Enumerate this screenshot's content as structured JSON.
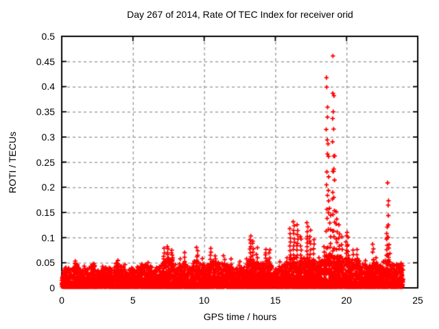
{
  "window": {
    "background": "#ffffff",
    "text_color": "#000000"
  },
  "chart_data": {
    "type": "scatter",
    "title": "Day 267 of 2014, Rate Of TEC Index for receiver orid",
    "xlabel": "GPS time / hours",
    "ylabel": "ROTI / TECUs",
    "xlim": [
      0,
      25
    ],
    "ylim": [
      0,
      0.5
    ],
    "xticks": [
      0,
      5,
      10,
      15,
      20,
      25
    ],
    "xtick_labels": [
      "0",
      "5",
      "10",
      "15",
      "20",
      "25"
    ],
    "yticks": [
      0,
      0.05,
      0.1,
      0.15,
      0.2,
      0.25,
      0.3,
      0.35,
      0.4,
      0.45,
      0.5
    ],
    "ytick_labels": [
      "0",
      "0.05",
      "0.1",
      "0.15",
      "0.2",
      "0.25",
      "0.3",
      "0.35",
      "0.4",
      "0.45",
      "0.5"
    ],
    "grid": true,
    "legend": "none",
    "marker": "plus",
    "marker_color": "#ff0000",
    "axis_color": "#000000",
    "grid_color": "#a0a0a0",
    "time_span_hours": [
      0,
      23.97
    ],
    "n_band_points": 6000,
    "band_envelope": [
      [
        0,
        0.03
      ],
      [
        0.3,
        0.04
      ],
      [
        0.7,
        0.036
      ],
      [
        1.0,
        0.048
      ],
      [
        1.3,
        0.038
      ],
      [
        1.8,
        0.036
      ],
      [
        2.2,
        0.046
      ],
      [
        2.6,
        0.034
      ],
      [
        3.0,
        0.04
      ],
      [
        3.5,
        0.036
      ],
      [
        3.9,
        0.05
      ],
      [
        4.3,
        0.04
      ],
      [
        4.8,
        0.034
      ],
      [
        5.2,
        0.038
      ],
      [
        5.6,
        0.044
      ],
      [
        6.0,
        0.046
      ],
      [
        6.4,
        0.038
      ],
      [
        6.8,
        0.042
      ],
      [
        7.2,
        0.055
      ],
      [
        7.5,
        0.06
      ],
      [
        7.8,
        0.055
      ],
      [
        8.1,
        0.042
      ],
      [
        8.5,
        0.05
      ],
      [
        9.0,
        0.04
      ],
      [
        9.5,
        0.058
      ],
      [
        9.8,
        0.044
      ],
      [
        10.2,
        0.042
      ],
      [
        10.5,
        0.055
      ],
      [
        10.9,
        0.048
      ],
      [
        11.3,
        0.05
      ],
      [
        11.7,
        0.042
      ],
      [
        12.1,
        0.04
      ],
      [
        12.5,
        0.044
      ],
      [
        12.9,
        0.042
      ],
      [
        13.3,
        0.06
      ],
      [
        13.6,
        0.055
      ],
      [
        14.0,
        0.048
      ],
      [
        14.4,
        0.058
      ],
      [
        14.8,
        0.042
      ],
      [
        15.2,
        0.038
      ],
      [
        15.6,
        0.044
      ],
      [
        16.0,
        0.055
      ],
      [
        16.4,
        0.065
      ],
      [
        16.8,
        0.055
      ],
      [
        17.2,
        0.06
      ],
      [
        17.6,
        0.055
      ],
      [
        18.0,
        0.048
      ],
      [
        18.4,
        0.055
      ],
      [
        18.8,
        0.065
      ],
      [
        19.2,
        0.065
      ],
      [
        19.6,
        0.058
      ],
      [
        20.0,
        0.06
      ],
      [
        20.4,
        0.052
      ],
      [
        20.8,
        0.055
      ],
      [
        21.2,
        0.044
      ],
      [
        21.6,
        0.042
      ],
      [
        22.0,
        0.05
      ],
      [
        22.4,
        0.044
      ],
      [
        22.8,
        0.055
      ],
      [
        23.1,
        0.05
      ],
      [
        23.4,
        0.042
      ],
      [
        23.7,
        0.046
      ],
      [
        23.97,
        0.045
      ]
    ],
    "spikes": [
      [
        0.3,
        0.045,
        3
      ],
      [
        0.95,
        0.058,
        5
      ],
      [
        1.6,
        0.048,
        3
      ],
      [
        2.2,
        0.052,
        4
      ],
      [
        2.9,
        0.046,
        3
      ],
      [
        3.3,
        0.044,
        3
      ],
      [
        3.9,
        0.056,
        5
      ],
      [
        4.4,
        0.05,
        3
      ],
      [
        4.9,
        0.044,
        3
      ],
      [
        5.6,
        0.05,
        4
      ],
      [
        6.1,
        0.052,
        4
      ],
      [
        7.2,
        0.08,
        7
      ],
      [
        7.45,
        0.086,
        8
      ],
      [
        7.75,
        0.078,
        8
      ],
      [
        8.3,
        0.06,
        4
      ],
      [
        8.65,
        0.072,
        5
      ],
      [
        9.5,
        0.083,
        7
      ],
      [
        9.9,
        0.062,
        4
      ],
      [
        10.45,
        0.082,
        6
      ],
      [
        10.8,
        0.068,
        5
      ],
      [
        11.4,
        0.066,
        5
      ],
      [
        11.9,
        0.06,
        4
      ],
      [
        12.5,
        0.055,
        3
      ],
      [
        13.0,
        0.06,
        4
      ],
      [
        13.25,
        0.107,
        9
      ],
      [
        13.45,
        0.098,
        7
      ],
      [
        13.7,
        0.082,
        5
      ],
      [
        14.35,
        0.08,
        7
      ],
      [
        14.6,
        0.078,
        6
      ],
      [
        15.3,
        0.055,
        3
      ],
      [
        15.8,
        0.065,
        4
      ],
      [
        16.05,
        0.12,
        9
      ],
      [
        16.3,
        0.136,
        11
      ],
      [
        16.55,
        0.128,
        10
      ],
      [
        16.8,
        0.108,
        7
      ],
      [
        17.25,
        0.132,
        11
      ],
      [
        17.45,
        0.118,
        8
      ],
      [
        17.7,
        0.098,
        6
      ],
      [
        18.1,
        0.065,
        4
      ],
      [
        18.45,
        0.088,
        5
      ],
      [
        18.62,
        0.43,
        15
      ],
      [
        18.7,
        0.3,
        9
      ],
      [
        18.85,
        0.165,
        9
      ],
      [
        19.0,
        0.478,
        8
      ],
      [
        19.08,
        0.41,
        9
      ],
      [
        19.15,
        0.27,
        9
      ],
      [
        19.3,
        0.155,
        9
      ],
      [
        19.5,
        0.128,
        7
      ],
      [
        19.65,
        0.108,
        5
      ],
      [
        20.0,
        0.115,
        8
      ],
      [
        20.1,
        0.105,
        5
      ],
      [
        20.45,
        0.08,
        5
      ],
      [
        20.75,
        0.078,
        6
      ],
      [
        21.3,
        0.062,
        3
      ],
      [
        21.85,
        0.095,
        5
      ],
      [
        22.1,
        0.065,
        3
      ],
      [
        22.55,
        0.06,
        3
      ],
      [
        22.85,
        0.127,
        7
      ],
      [
        22.9,
        0.23,
        5
      ],
      [
        22.95,
        0.185,
        4
      ],
      [
        23.0,
        0.09,
        6
      ],
      [
        23.5,
        0.05,
        3
      ],
      [
        23.8,
        0.055,
        3
      ]
    ]
  }
}
